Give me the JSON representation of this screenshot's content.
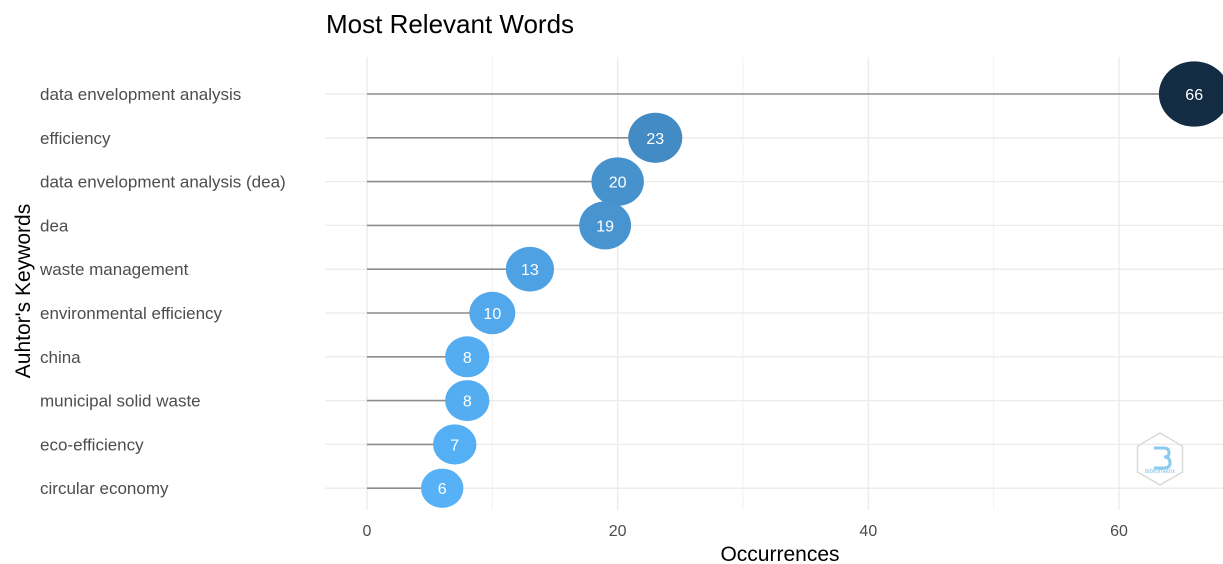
{
  "chart_data": {
    "type": "lollipop",
    "title": "Most Relevant Words",
    "xlabel": "Occurrences",
    "ylabel": "Auhtor's Keywords",
    "categories": [
      "data envelopment analysis",
      "efficiency",
      "data envelopment analysis (dea)",
      "dea",
      "waste management",
      "environmental efficiency",
      "china",
      "municipal solid waste",
      "eco-efficiency",
      "circular economy"
    ],
    "values": [
      66,
      23,
      20,
      19,
      13,
      10,
      8,
      8,
      7,
      6
    ],
    "xlim": [
      0,
      66
    ],
    "xticks": [
      0,
      20,
      40,
      60
    ],
    "grid": true,
    "color_scale": {
      "low": "#56b1f7",
      "high": "#132b43"
    }
  },
  "watermark": {
    "icon": "bibliometrix-hexagon-logo",
    "text": "bibliometrix"
  }
}
